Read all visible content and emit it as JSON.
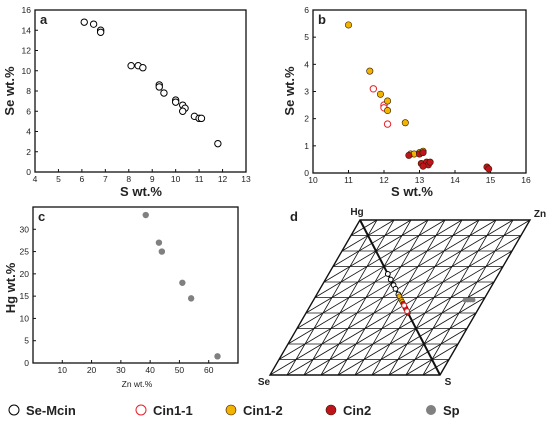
{
  "colors": {
    "se_mcin": "#000000",
    "cin1_1": "#e8202a",
    "cin1_2": "#f2b400",
    "cin2": "#c0141c",
    "sp": "#808080"
  },
  "legend": [
    {
      "key": "se_mcin",
      "label": "Se-Mcin"
    },
    {
      "key": "cin1_1",
      "label": "Cin1-1"
    },
    {
      "key": "cin1_2",
      "label": "Cin1-2"
    },
    {
      "key": "cin2",
      "label": "Cin2"
    },
    {
      "key": "sp",
      "label": "Sp"
    }
  ],
  "chart_data": [
    {
      "panel": "a",
      "type": "scatter",
      "xlabel": "S wt.%",
      "ylabel": "Se wt.%",
      "xlim": [
        4,
        13
      ],
      "ylim": [
        0,
        16
      ],
      "xticks": [
        4,
        5,
        6,
        7,
        8,
        9,
        10,
        11,
        12,
        13
      ],
      "yticks": [
        0,
        2,
        4,
        6,
        8,
        10,
        12,
        14,
        16
      ],
      "series": [
        {
          "key": "se_mcin",
          "points": [
            [
              6.1,
              14.8
            ],
            [
              6.5,
              14.6
            ],
            [
              6.8,
              14.0
            ],
            [
              6.8,
              13.8
            ],
            [
              8.1,
              10.5
            ],
            [
              8.4,
              10.5
            ],
            [
              8.6,
              10.3
            ],
            [
              9.3,
              8.6
            ],
            [
              9.3,
              8.4
            ],
            [
              9.5,
              7.8
            ],
            [
              10.0,
              7.1
            ],
            [
              10.0,
              6.9
            ],
            [
              10.3,
              6.6
            ],
            [
              10.4,
              6.3
            ],
            [
              10.3,
              6.0
            ],
            [
              10.8,
              5.5
            ],
            [
              11.0,
              5.3
            ],
            [
              11.1,
              5.3
            ],
            [
              11.8,
              2.8
            ]
          ]
        }
      ]
    },
    {
      "panel": "b",
      "type": "scatter",
      "xlabel": "S wt.%",
      "ylabel": "Se wt.%",
      "xlim": [
        10,
        16
      ],
      "ylim": [
        0,
        6
      ],
      "xticks": [
        10,
        11,
        12,
        13,
        14,
        15,
        16
      ],
      "yticks": [
        0,
        1,
        2,
        3,
        4,
        5,
        6
      ],
      "series": [
        {
          "key": "cin1_1",
          "points": [
            [
              11.7,
              3.1
            ],
            [
              12.0,
              2.5
            ],
            [
              12.0,
              2.4
            ],
            [
              12.1,
              1.8
            ]
          ]
        },
        {
          "key": "cin1_2",
          "points": [
            [
              11.0,
              5.45
            ],
            [
              11.6,
              3.75
            ],
            [
              11.9,
              2.9
            ],
            [
              12.1,
              2.65
            ],
            [
              12.1,
              2.3
            ],
            [
              12.6,
              1.85
            ],
            [
              12.75,
              0.7
            ],
            [
              12.85,
              0.7
            ],
            [
              13.0,
              0.75
            ],
            [
              13.1,
              0.8
            ]
          ]
        },
        {
          "key": "cin2",
          "points": [
            [
              12.7,
              0.65
            ],
            [
              13.0,
              0.7
            ],
            [
              13.1,
              0.75
            ],
            [
              13.05,
              0.35
            ],
            [
              13.2,
              0.4
            ],
            [
              13.25,
              0.3
            ],
            [
              13.1,
              0.25
            ],
            [
              13.3,
              0.4
            ],
            [
              14.9,
              0.22
            ],
            [
              14.95,
              0.15
            ]
          ]
        }
      ]
    },
    {
      "panel": "c",
      "type": "scatter",
      "xlabel": "Zn wt.%",
      "ylabel": "Hg wt.%",
      "xlim": [
        0,
        70
      ],
      "ylim": [
        0,
        35
      ],
      "xticks": [
        10,
        20,
        30,
        40,
        50,
        60
      ],
      "yticks": [
        0,
        5,
        10,
        15,
        20,
        25,
        30
      ],
      "series": [
        {
          "key": "sp",
          "points": [
            [
              38.5,
              33.2
            ],
            [
              43.0,
              27.0
            ],
            [
              44.0,
              25.0
            ],
            [
              51.0,
              18.0
            ],
            [
              54.0,
              14.5
            ],
            [
              63.0,
              1.5
            ]
          ]
        }
      ]
    },
    {
      "panel": "d",
      "type": "ternary",
      "apex_labels": {
        "top_left": "Hg",
        "top_right": "Zn",
        "bottom_left": "Se",
        "bottom_right": "S"
      },
      "series": [
        {
          "key": "se_mcin",
          "points": [
            [
              0.29,
              0.0
            ],
            [
              0.32,
              0.0
            ],
            [
              0.35,
              0.0
            ],
            [
              0.37,
              0.0
            ],
            [
              0.4,
              0.0
            ]
          ]
        },
        {
          "key": "cin1_2",
          "points": [
            [
              0.41,
              0.0
            ],
            [
              0.43,
              0.0
            ],
            [
              0.44,
              0.0
            ]
          ]
        },
        {
          "key": "cin2",
          "points": [
            [
              0.45,
              0.0
            ],
            [
              0.47,
              0.0
            ],
            [
              0.48,
              0.0
            ],
            [
              0.5,
              0.0
            ]
          ]
        },
        {
          "key": "cin1_1",
          "points": [
            [
              0.46,
              0.0
            ],
            [
              0.49,
              0.0
            ]
          ]
        },
        {
          "key": "sp",
          "points": [
            [
              0.21,
              0.6
            ],
            [
              0.18,
              0.63
            ],
            [
              0.24,
              0.62
            ],
            [
              0.27,
              0.62
            ]
          ]
        }
      ]
    }
  ]
}
